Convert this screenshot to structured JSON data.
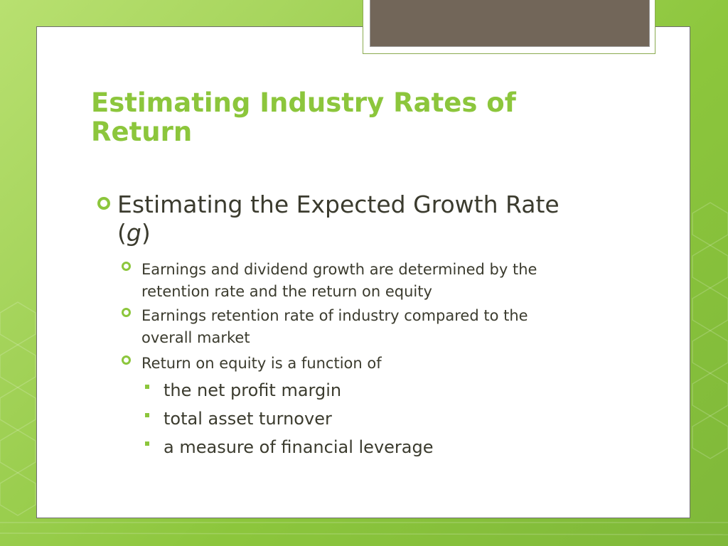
{
  "slide": {
    "title_line1": "Estimating Industry Rates of",
    "title_line2": "Return",
    "level1": {
      "text_main": "Estimating the Expected Growth Rate",
      "paren_open": "(",
      "paren_var": "g",
      "paren_close": ")"
    },
    "level2": [
      {
        "line1": "Earnings and dividend growth are determined by the",
        "line2": "retention rate and the return on equity"
      },
      {
        "line1": "Earnings retention rate of industry compared to the",
        "line2": "overall market"
      },
      {
        "line1": "Return on equity is a function of",
        "line2": ""
      }
    ],
    "level3": [
      "the net profit margin",
      "total asset turnover",
      "a measure of financial leverage"
    ]
  },
  "colors": {
    "accent_green": "#8cc63c",
    "text_dark": "#3b3b2e",
    "tab_fill": "#726659"
  },
  "icons": {
    "level1_bullet": "ring-bullet-icon",
    "level2_bullet": "ring-bullet-icon",
    "level3_bullet": "square-bullet-icon"
  }
}
